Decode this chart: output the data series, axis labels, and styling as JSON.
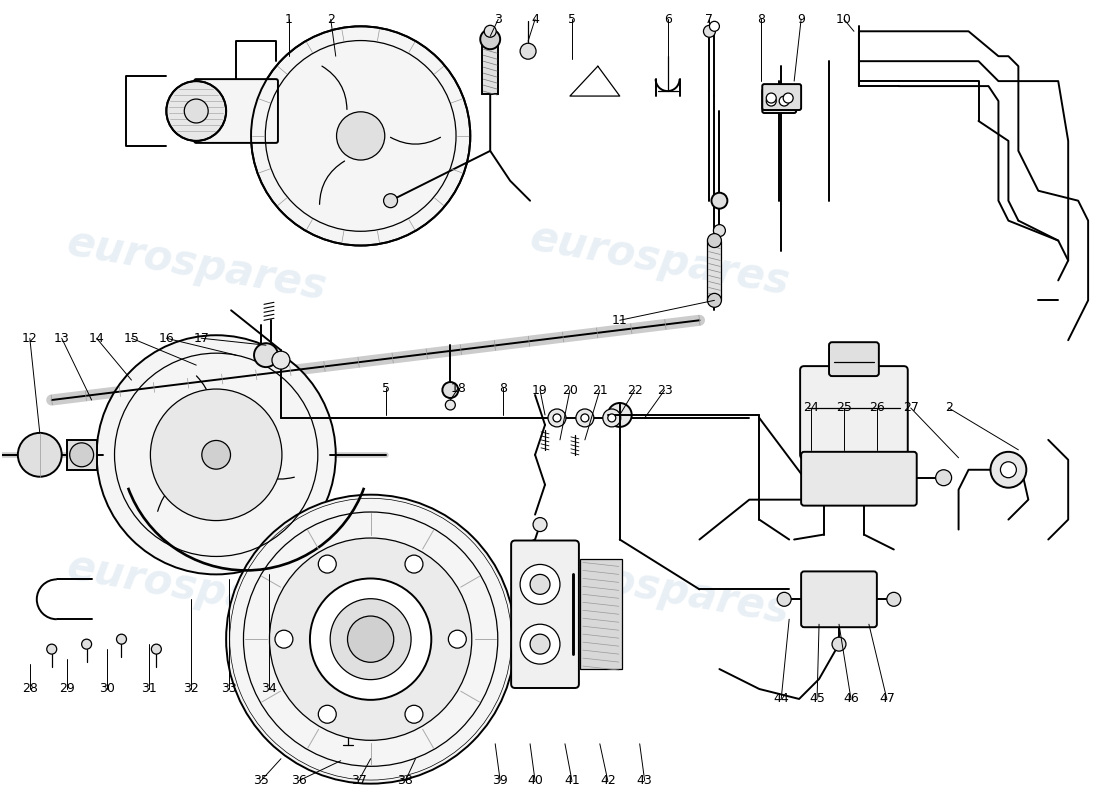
{
  "background_color": "#ffffff",
  "line_color": "#000000",
  "watermark_text": "eurospares",
  "watermark_color": "#b8cfe0",
  "watermark_alpha": 0.3
}
